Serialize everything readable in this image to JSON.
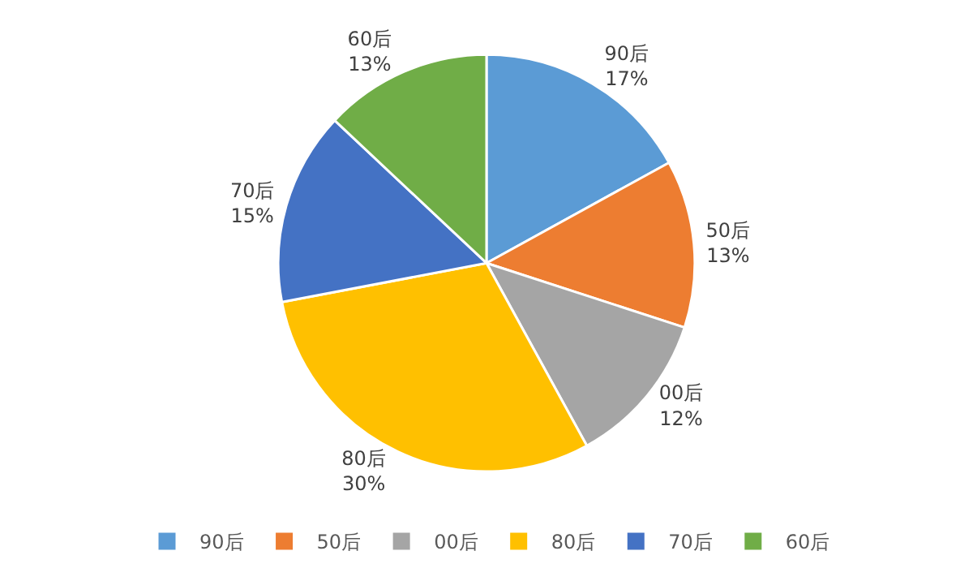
{
  "chart_data": {
    "type": "pie",
    "categories": [
      "90后",
      "50后",
      "00后",
      "80后",
      "70后",
      "60后"
    ],
    "values": [
      17,
      13,
      12,
      30,
      15,
      13
    ],
    "value_labels": [
      "17%",
      "13%",
      "12%",
      "30%",
      "15%",
      "13%"
    ],
    "colors": [
      "#5b9bd5",
      "#ed7d31",
      "#a5a5a5",
      "#ffc000",
      "#4472c4",
      "#70ad47"
    ],
    "legend": "bottom"
  }
}
